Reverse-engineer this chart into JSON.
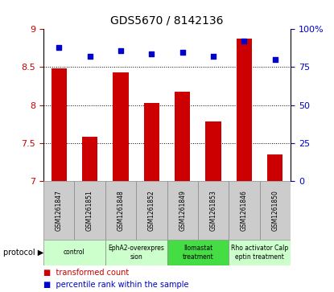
{
  "title": "GDS5670 / 8142136",
  "samples": [
    "GSM1261847",
    "GSM1261851",
    "GSM1261848",
    "GSM1261852",
    "GSM1261849",
    "GSM1261853",
    "GSM1261846",
    "GSM1261850"
  ],
  "transformed_counts": [
    8.48,
    7.58,
    8.43,
    8.03,
    8.18,
    7.78,
    8.88,
    7.35
  ],
  "percentile_ranks": [
    88,
    82,
    86,
    84,
    85,
    82,
    92,
    80
  ],
  "ylim_left": [
    7.0,
    9.0
  ],
  "ylim_right": [
    0,
    100
  ],
  "yticks_left": [
    7.0,
    7.5,
    8.0,
    8.5,
    9.0
  ],
  "yticks_right": [
    0,
    25,
    50,
    75,
    100
  ],
  "ytick_labels_left": [
    "7",
    "7.5",
    "8",
    "8.5",
    "9"
  ],
  "ytick_labels_right": [
    "0",
    "25",
    "50",
    "75",
    "100%"
  ],
  "bar_color": "#cc0000",
  "dot_color": "#0000cc",
  "bg_color": "#ffffff",
  "grid_color": "black",
  "grid_lines": [
    7.5,
    8.0,
    8.5
  ],
  "sample_box_color": "#cccccc",
  "protocol_groups": [
    {
      "label": "control",
      "start": 0,
      "end": 2,
      "color": "#ccffcc"
    },
    {
      "label": "EphA2-overexpres\nsion",
      "start": 2,
      "end": 4,
      "color": "#ccffcc"
    },
    {
      "label": "Ilomastat\ntreatment",
      "start": 4,
      "end": 6,
      "color": "#44dd44"
    },
    {
      "label": "Rho activator Calp\neptin treatment",
      "start": 6,
      "end": 8,
      "color": "#ccffcc"
    }
  ],
  "legend_bar_label": "transformed count",
  "legend_dot_label": "percentile rank within the sample",
  "protocol_label": "protocol"
}
